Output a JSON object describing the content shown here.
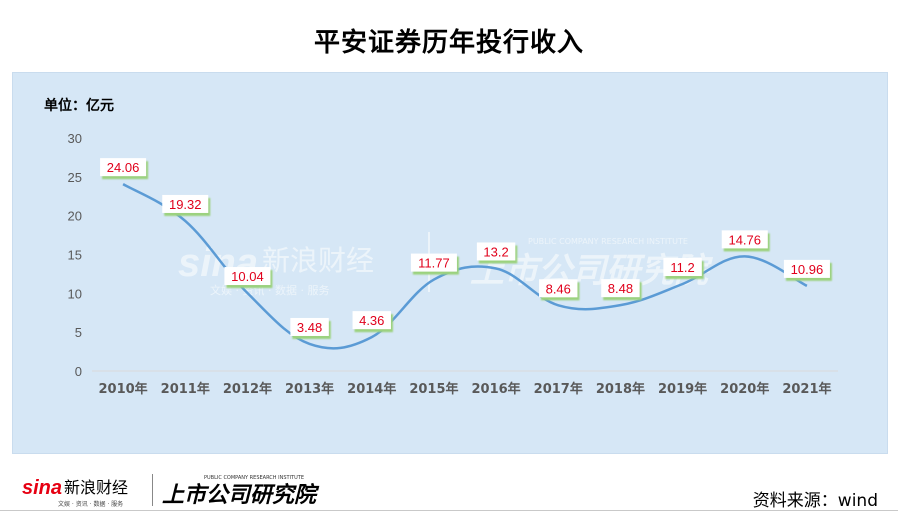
{
  "title": "平安证券历年投行收入",
  "unit_label": "单位：亿元",
  "source": "资料来源：wind",
  "watermark": {
    "sina_brand": "sina",
    "sina_cn": "新浪财经",
    "sina_sub": "文娱 · 资讯 · 数据 · 服务",
    "institute_cn": "上市公司研究院",
    "institute_en": "PUBLIC COMPANY RESEARCH INSTITUTE"
  },
  "colors": {
    "line": "#5b9bd5",
    "label_text": "#e0001b",
    "label_bg": "#ffffff",
    "label_shadow": "#9bd27e",
    "panel_bg": "#d6e7f6"
  },
  "chart_data": {
    "type": "line",
    "smooth": true,
    "categories": [
      "2010年",
      "2011年",
      "2012年",
      "2013年",
      "2014年",
      "2015年",
      "2016年",
      "2017年",
      "2018年",
      "2019年",
      "2020年",
      "2021年"
    ],
    "values": [
      24.06,
      19.32,
      10.04,
      3.48,
      4.36,
      11.77,
      13.2,
      8.46,
      8.48,
      11.2,
      14.76,
      10.96
    ],
    "data_labels": [
      "24.06",
      "19.32",
      "10.04",
      "3.48",
      "4.36",
      "11.77",
      "13.2",
      "8.46",
      "8.48",
      "11.2",
      "14.76",
      "10.96"
    ],
    "yticks": [
      "0",
      "5",
      "10",
      "15",
      "20",
      "25",
      "30"
    ],
    "ylim": [
      0,
      30
    ],
    "grid": false,
    "legend": "none"
  }
}
